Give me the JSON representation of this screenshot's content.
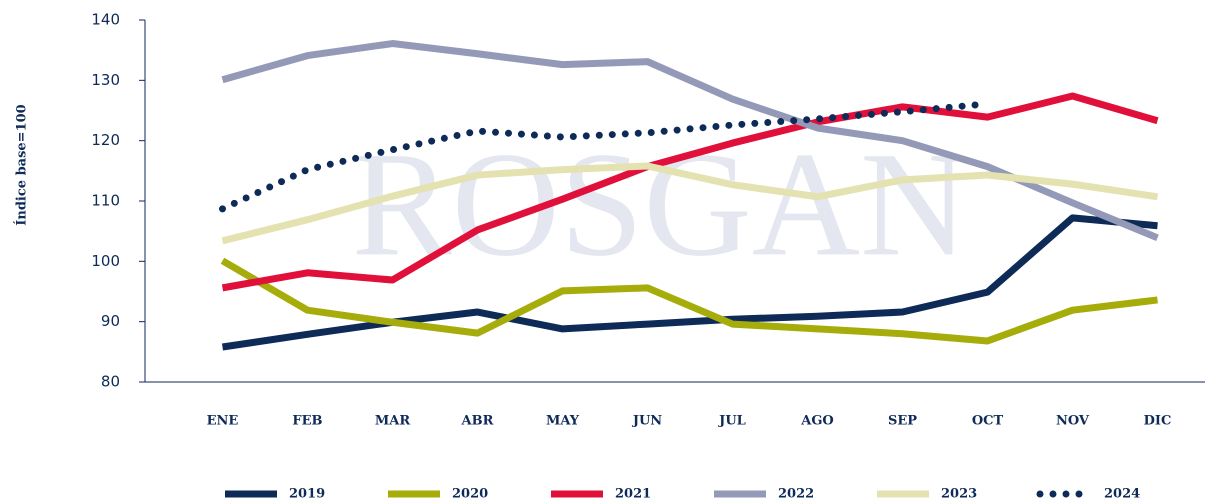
{
  "chart_data": {
    "type": "line",
    "watermark": "ROSGAN",
    "y_label": "Índice base=100",
    "categories": [
      "ENE",
      "FEB",
      "MAR",
      "ABR",
      "MAY",
      "JUN",
      "JUL",
      "AGO",
      "SEP",
      "OCT",
      "NOV",
      "DIC"
    ],
    "ylim": [
      80,
      140
    ],
    "yticks": [
      80,
      90,
      100,
      110,
      120,
      130,
      140
    ],
    "grid": false,
    "legend": "bottom",
    "series": [
      {
        "name": "2019",
        "color": "#0e2a57",
        "style": "solid",
        "values": [
          85.8,
          87.9,
          89.9,
          91.6,
          88.8,
          89.6,
          90.4,
          90.9,
          91.6,
          94.9,
          107.2,
          105.9
        ]
      },
      {
        "name": "2020",
        "color": "#a6ad0a",
        "style": "solid",
        "values": [
          100.1,
          91.9,
          89.9,
          88.1,
          95.1,
          95.6,
          89.6,
          88.8,
          88.0,
          86.8,
          91.9,
          93.6
        ]
      },
      {
        "name": "2021",
        "color": "#e0103a",
        "style": "solid",
        "values": [
          95.6,
          98.1,
          96.9,
          105.2,
          110.3,
          115.7,
          119.6,
          123.1,
          125.6,
          123.9,
          127.4,
          123.3
        ]
      },
      {
        "name": "2022",
        "color": "#9499b8",
        "style": "solid",
        "values": [
          130.1,
          134.1,
          136.1,
          134.4,
          132.6,
          133.1,
          126.9,
          122.1,
          120.0,
          115.7,
          109.7,
          103.9
        ]
      },
      {
        "name": "2023",
        "color": "#e3e2b0",
        "style": "solid",
        "values": [
          103.4,
          106.9,
          110.8,
          114.3,
          115.2,
          115.8,
          112.7,
          110.7,
          113.5,
          114.3,
          112.8,
          110.7
        ]
      },
      {
        "name": "2024",
        "color": "#0e2a57",
        "style": "dotted",
        "values": [
          108.7,
          115.2,
          118.5,
          121.6,
          120.6,
          121.3,
          122.6,
          123.6,
          124.8,
          126.1,
          null,
          null
        ]
      }
    ]
  }
}
